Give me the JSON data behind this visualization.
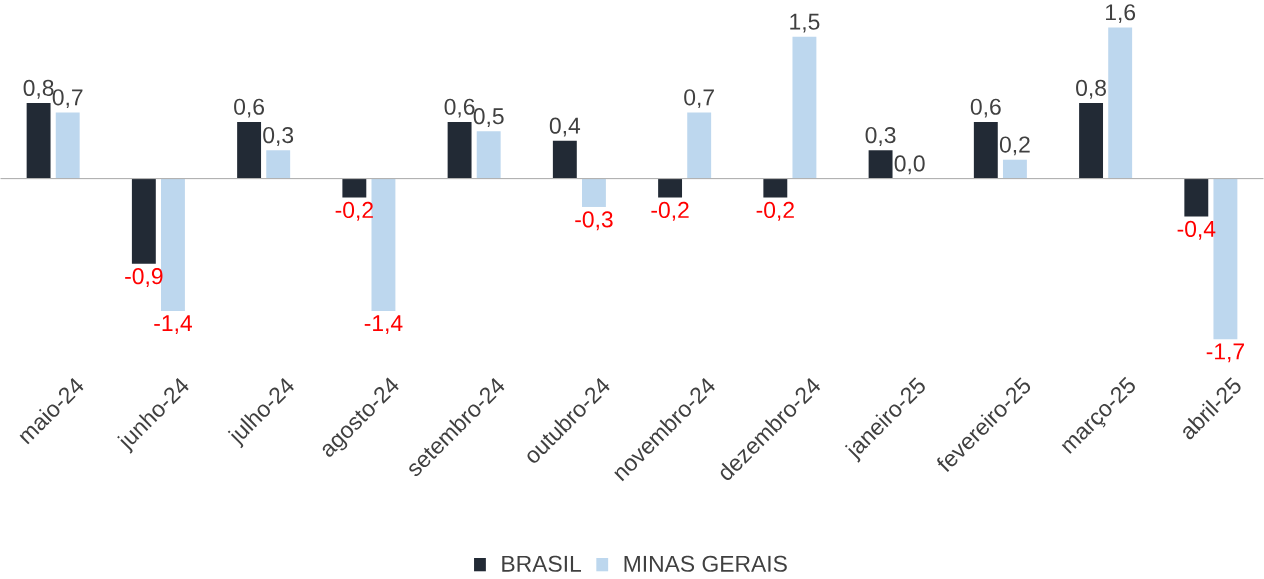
{
  "chart_data": {
    "type": "bar",
    "categories": [
      "maio-24",
      "junho-24",
      "julho-24",
      "agosto-24",
      "setembro-24",
      "outubro-24",
      "novembro-24",
      "dezembro-24",
      "janeiro-25",
      "fevereiro-25",
      "março-25",
      "abril-25"
    ],
    "series": [
      {
        "name": "BRASIL",
        "color": "#222a35",
        "values": [
          0.8,
          -0.9,
          0.6,
          -0.2,
          0.6,
          0.4,
          -0.2,
          -0.2,
          0.3,
          0.6,
          0.8,
          -0.4
        ],
        "value_labels": [
          "0,8",
          "-0,9",
          "0,6",
          "-0,2",
          "0,6",
          "0,4",
          "-0,2",
          "-0,2",
          "0,3",
          "0,6",
          "0,8",
          "-0,4"
        ]
      },
      {
        "name": "MINAS GERAIS",
        "color": "#bdd7ee",
        "values": [
          0.7,
          -1.4,
          0.3,
          -1.4,
          0.5,
          -0.3,
          0.7,
          1.5,
          0.0,
          0.2,
          1.6,
          -1.7
        ],
        "value_labels": [
          "0,7",
          "-1,4",
          "0,3",
          "-1,4",
          "0,5",
          "-0,3",
          "0,7",
          "1,5",
          "0,0",
          "0,2",
          "1,6",
          "-1,7"
        ]
      }
    ],
    "legend": "bottom"
  }
}
